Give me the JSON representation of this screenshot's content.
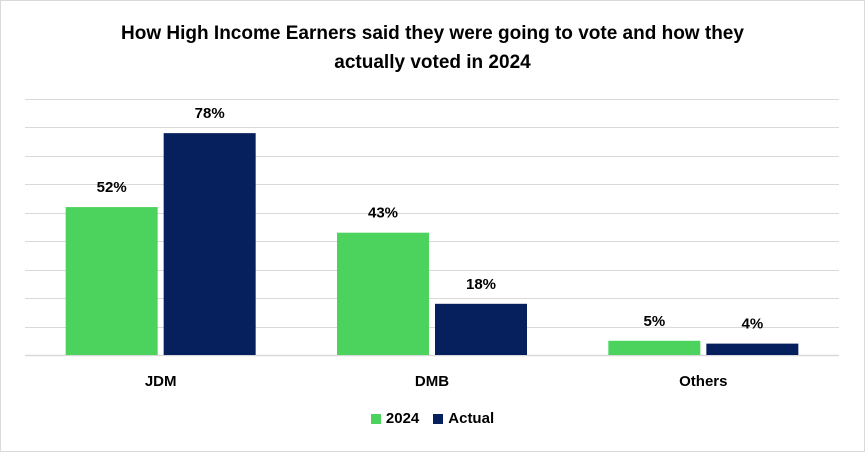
{
  "chart_data": {
    "type": "bar",
    "title_lines": [
      "How High Income Earners said they were going to vote and how they",
      "actually voted in 2024"
    ],
    "categories": [
      "JDM",
      "DMB",
      "Others"
    ],
    "series": [
      {
        "name": "2024",
        "values": [
          52,
          43,
          5
        ],
        "labels": [
          "52%",
          "43%",
          "5%"
        ],
        "color": "#4cd35e"
      },
      {
        "name": "Actual",
        "values": [
          78,
          18,
          4
        ],
        "labels": [
          "78%",
          "18%",
          "4%"
        ],
        "color": "#06205e"
      }
    ],
    "ylim": [
      0,
      90
    ],
    "grid": true,
    "y_axis_labels_shown": false,
    "legend_position": "bottom",
    "gridline_color": "#d9d9d9"
  }
}
